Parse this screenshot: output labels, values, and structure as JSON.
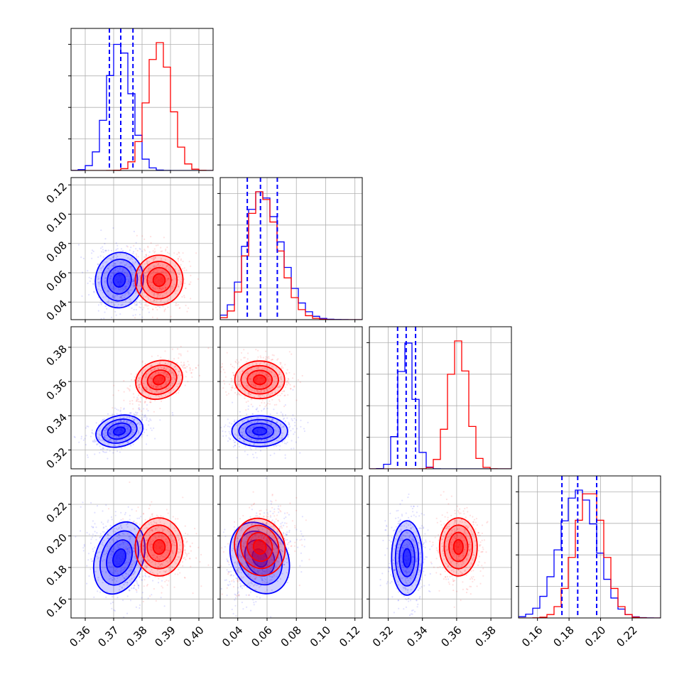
{
  "chart_data": {
    "type": "corner",
    "title": "",
    "grid": true,
    "parameters": [
      {
        "range": [
          0.355,
          0.405
        ],
        "ticks": [
          0.36,
          0.37,
          0.38,
          0.39,
          0.4
        ],
        "tick_labels": [
          "0.36",
          "0.37",
          "0.38",
          "0.39",
          "0.40"
        ]
      },
      {
        "range": [
          0.028,
          0.125
        ],
        "ticks": [
          0.04,
          0.06,
          0.08,
          0.1,
          0.12
        ],
        "tick_labels": [
          "0.04",
          "0.06",
          "0.08",
          "0.10",
          "0.12"
        ]
      },
      {
        "range": [
          0.309,
          0.392
        ],
        "ticks": [
          0.32,
          0.34,
          0.36,
          0.38
        ],
        "tick_labels": [
          "0.32",
          "0.34",
          "0.36",
          "0.38"
        ]
      },
      {
        "range": [
          0.148,
          0.238
        ],
        "ticks": [
          0.16,
          0.18,
          0.2,
          0.22
        ],
        "tick_labels": [
          "0.16",
          "0.18",
          "0.20",
          "0.22"
        ]
      }
    ],
    "series": [
      {
        "color": "#0000ff",
        "means": [
          0.372,
          0.055,
          0.331,
          0.186
        ],
        "stds": [
          0.0042,
          0.0095,
          0.0045,
          0.0118
        ],
        "correlations": [
          [
            0,
            1,
            -0.15
          ],
          [
            0,
            2,
            0.45
          ],
          [
            0,
            3,
            -0.25
          ],
          [
            1,
            2,
            0.0
          ],
          [
            1,
            3,
            0.4
          ],
          [
            2,
            3,
            0.0
          ]
        ],
        "quantiles": [
          [
            0.3685,
            0.3725,
            0.3768
          ],
          [
            0.0465,
            0.0555,
            0.067
          ],
          [
            0.3255,
            0.3305,
            0.336
          ],
          [
            0.1755,
            0.1855,
            0.1975
          ]
        ]
      },
      {
        "color": "#ff0000",
        "means": [
          0.386,
          0.055,
          0.361,
          0.193
        ],
        "stds": [
          0.0042,
          0.0085,
          0.0055,
          0.0092
        ],
        "correlations": [
          [
            0,
            1,
            0.0
          ],
          [
            0,
            2,
            0.5
          ],
          [
            0,
            3,
            0.0
          ],
          [
            1,
            2,
            0.0
          ],
          [
            1,
            3,
            0.3
          ],
          [
            2,
            3,
            0.0
          ]
        ],
        "quantiles": []
      }
    ],
    "contour_levels_sigma": [
      0.5,
      1.0,
      1.5,
      2.0
    ],
    "scatter_points_per_panel": 500
  }
}
